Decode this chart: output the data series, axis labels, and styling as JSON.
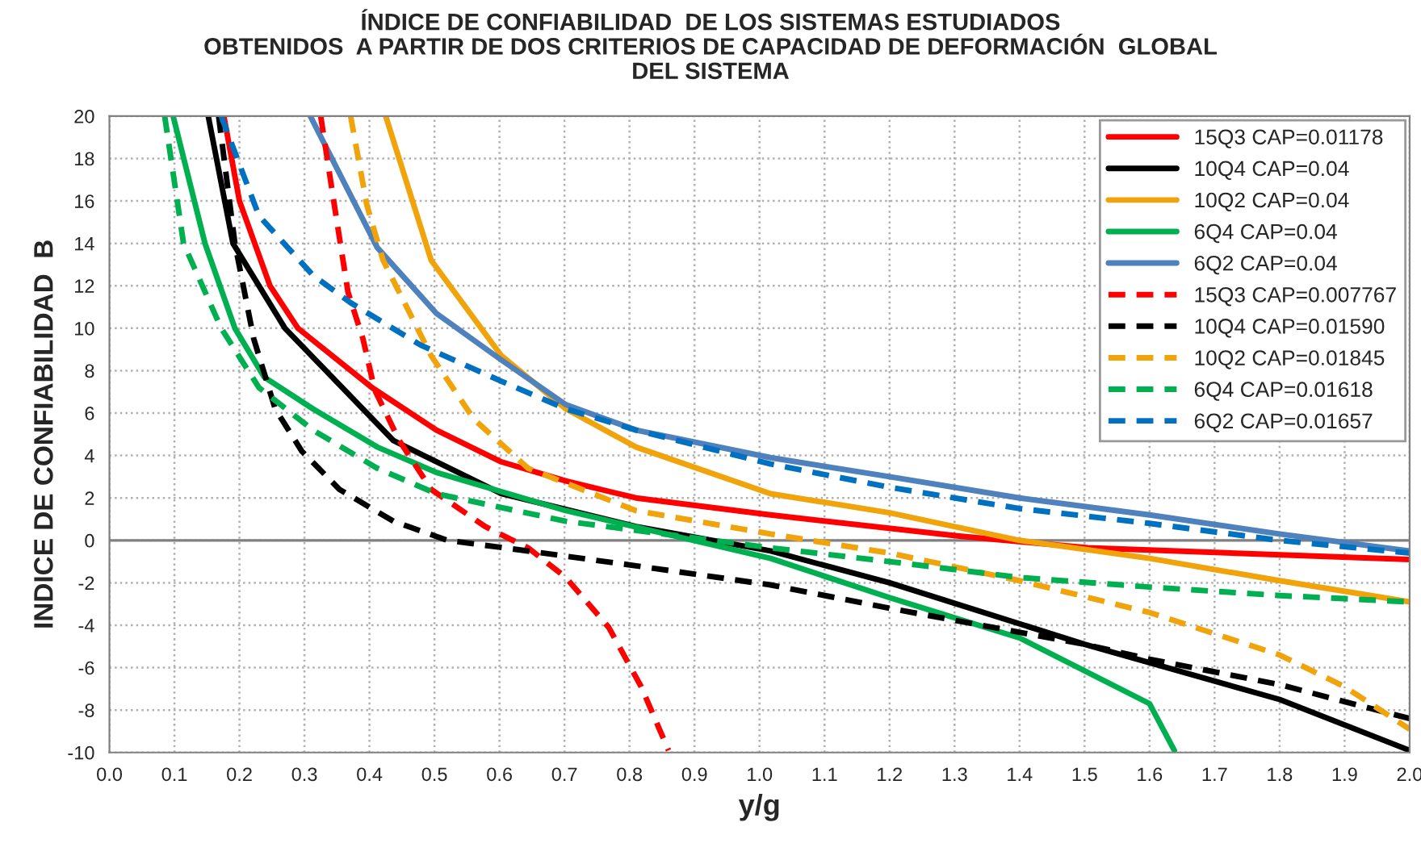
{
  "chart_data": {
    "type": "line",
    "title": "ÍNDICE DE CONFIABILIDAD  DE LOS SISTEMAS ESTUDIADOS\nOBTENIDOS  A PARTIR DE DOS CRITERIOS DE CAPACIDAD DE DEFORMACIÓN  GLOBAL\nDEL SISTEMA",
    "xlabel": "y/g",
    "ylabel": "INDICE DE CONFIABILIDAD  B",
    "xlim": [
      0,
      2
    ],
    "xticks": [
      {
        "value": 0,
        "label": "0.0"
      },
      {
        "value": 0.1,
        "label": "0.1"
      },
      {
        "value": 0.2,
        "label": "0.2"
      },
      {
        "value": 0.3,
        "label": "0.3"
      },
      {
        "value": 0.4,
        "label": "0.4"
      },
      {
        "value": 0.5,
        "label": "0.5"
      },
      {
        "value": 0.6,
        "label": "0.6"
      },
      {
        "value": 0.7,
        "label": "0.7"
      },
      {
        "value": 0.8,
        "label": "0.8"
      },
      {
        "value": 0.9,
        "label": "0.9"
      },
      {
        "value": 1.0,
        "label": "1.0"
      },
      {
        "value": 1.1,
        "label": "1.1"
      },
      {
        "value": 1.2,
        "label": "1.2"
      },
      {
        "value": 1.3,
        "label": "1.3"
      },
      {
        "value": 1.4,
        "label": "1.4"
      },
      {
        "value": 1.5,
        "label": "1.5"
      },
      {
        "value": 1.6,
        "label": "1.6"
      },
      {
        "value": 1.7,
        "label": "1.7"
      },
      {
        "value": 1.8,
        "label": "1.8"
      },
      {
        "value": 1.9,
        "label": "1.9"
      },
      {
        "value": 2.0,
        "label": "2.0"
      }
    ],
    "ylim": [
      -10,
      20
    ],
    "yticks": [
      -10,
      -8,
      -6,
      -4,
      -2,
      0,
      2,
      4,
      6,
      8,
      10,
      12,
      14,
      16,
      18,
      20
    ],
    "grid": true,
    "legend": "top right",
    "marker": "none",
    "ref_lines": [
      {
        "axis": "y",
        "value": 0,
        "label": null,
        "color": "#808080"
      }
    ],
    "series": [
      {
        "name": "15Q3 CAP=0.01178",
        "color": "#ff0000",
        "line_style": "solid",
        "x": [
          0.176,
          0.2,
          0.247,
          0.29,
          0.404,
          0.503,
          0.603,
          0.702,
          0.81,
          1.017,
          1.307,
          1.505,
          2.0
        ],
        "values": [
          20,
          16,
          12,
          10,
          7.2,
          5.2,
          3.7,
          2.8,
          2.0,
          1.2,
          0.2,
          -0.35,
          -0.9
        ]
      },
      {
        "name": "10Q4 CAP=0.04",
        "color": "#000000",
        "line_style": "solid",
        "x": [
          0.152,
          0.19,
          0.27,
          0.437,
          0.603,
          0.81,
          1.017,
          1.2,
          1.5,
          1.8,
          2.0
        ],
        "values": [
          20,
          14,
          10,
          4.7,
          2.2,
          0.65,
          -0.5,
          -2.0,
          -4.9,
          -7.5,
          -9.9
        ]
      },
      {
        "name": "10Q2 CAP=0.04",
        "color": "#f0a30a",
        "line_style": "solid",
        "x": [
          0.425,
          0.495,
          0.603,
          0.702,
          0.81,
          1.017,
          1.2,
          1.4,
          1.6,
          1.8,
          2.0
        ],
        "values": [
          20,
          13.2,
          8.7,
          6.2,
          4.4,
          2.2,
          1.3,
          0,
          -0.85,
          -1.9,
          -2.9
        ]
      },
      {
        "name": "6Q4 CAP=0.04",
        "color": "#00b050",
        "line_style": "solid",
        "x": [
          0.098,
          0.147,
          0.193,
          0.238,
          0.313,
          0.412,
          0.503,
          0.702,
          1.017,
          1.2,
          1.4,
          1.6,
          1.638
        ],
        "values": [
          20,
          14,
          10,
          7.7,
          6.2,
          4.4,
          3.2,
          1.4,
          -0.85,
          -2.7,
          -4.6,
          -7.7,
          -9.9
        ]
      },
      {
        "name": "6Q2 CAP=0.04",
        "color": "#4f81bd",
        "line_style": "solid",
        "x": [
          0.309,
          0.412,
          0.503,
          0.603,
          0.702,
          0.81,
          1.017,
          1.2,
          1.4,
          1.6,
          1.8,
          2.0
        ],
        "values": [
          20,
          13.8,
          10.7,
          8.5,
          6.4,
          5.2,
          3.9,
          3.0,
          2.0,
          1.2,
          0.3,
          -0.5
        ]
      },
      {
        "name": "15Q3 CAP=0.007767",
        "color": "#ff0000",
        "line_style": "dashed",
        "x": [
          0.325,
          0.346,
          0.367,
          0.39,
          0.408,
          0.446,
          0.495,
          0.578,
          0.644,
          0.702,
          0.768,
          0.818,
          0.86
        ],
        "values": [
          20,
          15.8,
          11.7,
          9.5,
          7.1,
          4.7,
          2.4,
          0.65,
          -0.35,
          -1.75,
          -4.1,
          -6.9,
          -9.9
        ]
      },
      {
        "name": "10Q4 CAP=0.01590",
        "color": "#000000",
        "line_style": "dashed",
        "x": [
          0.168,
          0.193,
          0.222,
          0.255,
          0.296,
          0.354,
          0.437,
          0.52,
          0.644,
          0.81,
          1.017,
          1.2,
          1.5,
          1.6,
          1.8,
          2.0
        ],
        "values": [
          20,
          14,
          9.5,
          6.2,
          4.2,
          2.4,
          0.9,
          0.0,
          -0.5,
          -1.2,
          -2.1,
          -3.2,
          -4.9,
          -5.6,
          -6.8,
          -8.4
        ]
      },
      {
        "name": "10Q2 CAP=0.01845",
        "color": "#f0a30a",
        "line_style": "dashed",
        "x": [
          0.371,
          0.396,
          0.421,
          0.454,
          0.495,
          0.561,
          0.644,
          0.81,
          1.017,
          1.2,
          1.4,
          1.6,
          1.8,
          1.9,
          2.0
        ],
        "values": [
          20,
          15.8,
          13.2,
          11.2,
          8.7,
          5.7,
          3.4,
          1.4,
          0.3,
          -0.6,
          -1.9,
          -3.4,
          -5.4,
          -6.9,
          -8.9
        ]
      },
      {
        "name": "6Q4 CAP=0.01618",
        "color": "#00b050",
        "line_style": "dashed",
        "x": [
          0.085,
          0.114,
          0.172,
          0.23,
          0.313,
          0.412,
          0.503,
          0.702,
          1.017,
          1.2,
          1.4,
          1.6,
          1.8,
          2.0
        ],
        "values": [
          20,
          14,
          10,
          7.2,
          5.2,
          3.4,
          2.2,
          0.9,
          -0.35,
          -1.0,
          -1.75,
          -2.2,
          -2.6,
          -2.9
        ]
      },
      {
        "name": "6Q2 CAP=0.01657",
        "color": "#0070c0",
        "line_style": "dashed",
        "x": [
          0.172,
          0.23,
          0.313,
          0.371,
          0.479,
          0.603,
          0.702,
          0.81,
          1.017,
          1.2,
          1.4,
          1.6,
          1.8,
          2.0
        ],
        "values": [
          20,
          15.3,
          12.5,
          11.2,
          9.2,
          7.5,
          6.2,
          5.2,
          3.6,
          2.5,
          1.5,
          0.8,
          0,
          -0.6
        ]
      }
    ]
  }
}
